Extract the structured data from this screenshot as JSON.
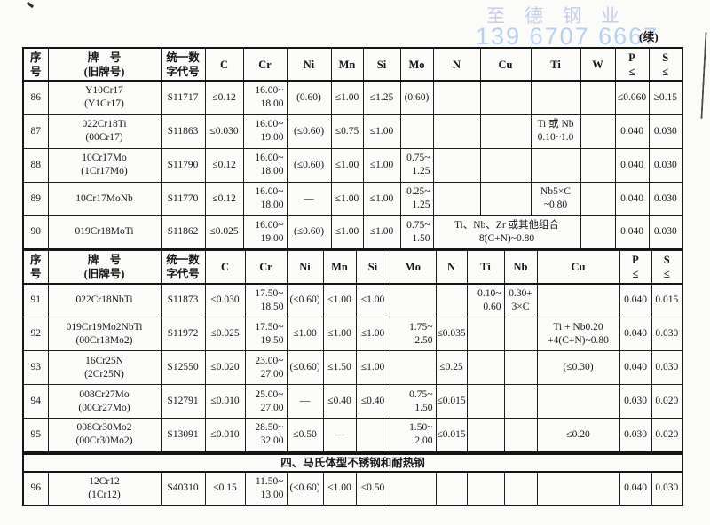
{
  "page": {
    "watermark_name": "至德钢业",
    "watermark_phone": "139 6707 6667",
    "continued": "(续)",
    "section_title": "四、马氏体型不锈钢和耐热钢"
  },
  "sections": [
    {
      "name": "ferritic-continued",
      "header": {
        "seq": "序号",
        "grade": [
          "牌　号",
          "(旧牌号)"
        ],
        "code": [
          "统一数",
          "字代号"
        ],
        "c": "C",
        "cr": "Cr",
        "ni": "Ni",
        "mn": "Mn",
        "si": "Si",
        "mo": "Mo",
        "n": "N",
        "cu": "Cu",
        "ti": "Ti",
        "w": "W",
        "p": [
          "P",
          "≤"
        ],
        "s": [
          "S",
          "≤"
        ]
      },
      "rows": [
        {
          "cells": [
            {
              "k": "seq",
              "v": "86"
            },
            {
              "k": "grade",
              "v": [
                "Y10Cr17",
                "(Y1Cr17)"
              ]
            },
            {
              "k": "code",
              "v": "S11717"
            },
            {
              "k": "c",
              "v": "≤0.12"
            },
            {
              "k": "cr",
              "v": [
                "16.00~",
                "18.00"
              ],
              "cls": "r"
            },
            {
              "k": "ni",
              "v": "(0.60)"
            },
            {
              "k": "mn",
              "v": "≤1.00"
            },
            {
              "k": "si",
              "v": "≤1.25"
            },
            {
              "k": "mo",
              "v": "(0.60)"
            },
            {
              "k": "n",
              "v": ""
            },
            {
              "k": "cu",
              "v": ""
            },
            {
              "k": "ti",
              "v": ""
            },
            {
              "k": "w",
              "v": ""
            },
            {
              "k": "p",
              "v": "≤0.060"
            },
            {
              "k": "s",
              "v": "≥0.15"
            }
          ]
        },
        {
          "cells": [
            {
              "k": "seq",
              "v": "87"
            },
            {
              "k": "grade",
              "v": [
                "022Cr18Ti",
                "(00Cr17)"
              ]
            },
            {
              "k": "code",
              "v": "S11863"
            },
            {
              "k": "c",
              "v": "≤0.030"
            },
            {
              "k": "cr",
              "v": [
                "16.00~",
                "19.00"
              ],
              "cls": "r"
            },
            {
              "k": "ni",
              "v": "(≤0.60)"
            },
            {
              "k": "mn",
              "v": "≤0.75"
            },
            {
              "k": "si",
              "v": "≤1.00"
            },
            {
              "k": "mo",
              "v": ""
            },
            {
              "k": "n",
              "v": ""
            },
            {
              "k": "cu",
              "v": ""
            },
            {
              "k": "ti",
              "v": [
                "Ti 或 Nb",
                "0.10~1.0"
              ]
            },
            {
              "k": "w",
              "v": ""
            },
            {
              "k": "p",
              "v": "0.040"
            },
            {
              "k": "s",
              "v": "0.030"
            }
          ]
        },
        {
          "cells": [
            {
              "k": "seq",
              "v": "88"
            },
            {
              "k": "grade",
              "v": [
                "10Cr17Mo",
                "(1Cr17Mo)"
              ]
            },
            {
              "k": "code",
              "v": "S11790"
            },
            {
              "k": "c",
              "v": "≤0.12"
            },
            {
              "k": "cr",
              "v": [
                "16.00~",
                "18.00"
              ],
              "cls": "r"
            },
            {
              "k": "ni",
              "v": "(≤0.60)"
            },
            {
              "k": "mn",
              "v": "≤1.00"
            },
            {
              "k": "si",
              "v": "≤1.00"
            },
            {
              "k": "mo",
              "v": [
                "0.75~",
                "1.25"
              ],
              "cls": "r"
            },
            {
              "k": "n",
              "v": ""
            },
            {
              "k": "cu",
              "v": ""
            },
            {
              "k": "ti",
              "v": ""
            },
            {
              "k": "w",
              "v": ""
            },
            {
              "k": "p",
              "v": "0.040"
            },
            {
              "k": "s",
              "v": "0.030"
            }
          ]
        },
        {
          "cells": [
            {
              "k": "seq",
              "v": "89"
            },
            {
              "k": "grade",
              "v": "10Cr17MoNb"
            },
            {
              "k": "code",
              "v": "S11770"
            },
            {
              "k": "c",
              "v": "≤0.12"
            },
            {
              "k": "cr",
              "v": [
                "16.00~",
                "18.00"
              ],
              "cls": "r"
            },
            {
              "k": "ni",
              "v": "—"
            },
            {
              "k": "mn",
              "v": "≤1.00"
            },
            {
              "k": "si",
              "v": "≤1.00"
            },
            {
              "k": "mo",
              "v": [
                "0.25~",
                "1.25"
              ],
              "cls": "r"
            },
            {
              "k": "n",
              "v": ""
            },
            {
              "k": "cu",
              "v": ""
            },
            {
              "k": "ti",
              "v": [
                "Nb5×C",
                "~0.80"
              ]
            },
            {
              "k": "w",
              "v": ""
            },
            {
              "k": "p",
              "v": "0.040"
            },
            {
              "k": "s",
              "v": "0.030"
            }
          ]
        },
        {
          "cells": [
            {
              "k": "seq",
              "v": "90"
            },
            {
              "k": "grade",
              "v": "019Cr18MoTi"
            },
            {
              "k": "code",
              "v": "S11862"
            },
            {
              "k": "c",
              "v": "≤0.025"
            },
            {
              "k": "cr",
              "v": [
                "16.00~",
                "19.00"
              ],
              "cls": "r"
            },
            {
              "k": "ni",
              "v": "(≤0.60)"
            },
            {
              "k": "mn",
              "v": "≤1.00"
            },
            {
              "k": "si",
              "v": "≤1.00"
            },
            {
              "k": "mo",
              "v": [
                "0.75~",
                "1.50"
              ],
              "cls": "r"
            },
            {
              "k": "n-cu-ti",
              "span": 3,
              "v": [
                "Ti、Nb、Zr 或其他组合",
                "8(C+N)~0.80"
              ]
            },
            {
              "k": "w",
              "v": ""
            },
            {
              "k": "p",
              "v": "0.040"
            },
            {
              "k": "s",
              "v": "0.030"
            }
          ]
        }
      ]
    },
    {
      "name": "ferritic-continued-2",
      "header": {
        "seq": "序号",
        "grade": [
          "牌　号",
          "(旧牌号)"
        ],
        "code": [
          "统一数",
          "字代号"
        ],
        "c": "C",
        "cr": "Cr",
        "ni": "Ni",
        "mn": "Mn",
        "si": "Si",
        "mo": "Mo",
        "n": "N",
        "ti": "Ti",
        "nb": "Nb",
        "cu": "Cu",
        "p": [
          "P",
          "≤"
        ],
        "s": [
          "S",
          "≤"
        ]
      },
      "rows": [
        {
          "cells": [
            {
              "k": "seq",
              "v": "91"
            },
            {
              "k": "grade",
              "v": "022Cr18NbTi"
            },
            {
              "k": "code",
              "v": "S11873"
            },
            {
              "k": "c",
              "v": "≤0.030"
            },
            {
              "k": "cr",
              "v": [
                "17.50~",
                "18.50"
              ],
              "cls": "r"
            },
            {
              "k": "ni",
              "v": "(≤0.60)"
            },
            {
              "k": "mn",
              "v": "≤1.00"
            },
            {
              "k": "si",
              "v": "≤1.00"
            },
            {
              "k": "mo",
              "v": ""
            },
            {
              "k": "n",
              "v": ""
            },
            {
              "k": "ti",
              "v": [
                "0.10~",
                "0.60"
              ],
              "cls": "r"
            },
            {
              "k": "nb",
              "v": [
                "0.30+",
                "3×C"
              ]
            },
            {
              "k": "cu",
              "v": ""
            },
            {
              "k": "p",
              "v": "0.040"
            },
            {
              "k": "s",
              "v": "0.015"
            }
          ]
        },
        {
          "cells": [
            {
              "k": "seq",
              "v": "92"
            },
            {
              "k": "grade",
              "v": [
                "019Cr19Mo2NbTi",
                "(00Cr18Mo2)"
              ]
            },
            {
              "k": "code",
              "v": "S11972"
            },
            {
              "k": "c",
              "v": "≤0.025"
            },
            {
              "k": "cr",
              "v": [
                "17.50~",
                "19.50"
              ],
              "cls": "r"
            },
            {
              "k": "ni",
              "v": "≤1.00"
            },
            {
              "k": "mn",
              "v": "≤1.00"
            },
            {
              "k": "si",
              "v": "≤1.00"
            },
            {
              "k": "mo",
              "v": [
                "1.75~",
                "2.50"
              ],
              "cls": "r"
            },
            {
              "k": "n",
              "v": "≤0.035"
            },
            {
              "k": "ti",
              "v": ""
            },
            {
              "k": "nb",
              "v": ""
            },
            {
              "k": "cu",
              "v": [
                "Ti + Nb0.20",
                "+4(C+N)~0.80"
              ]
            },
            {
              "k": "p",
              "v": "0.040"
            },
            {
              "k": "s",
              "v": "0.030"
            }
          ]
        },
        {
          "cells": [
            {
              "k": "seq",
              "v": "93"
            },
            {
              "k": "grade",
              "v": [
                "16Cr25N",
                "(2Cr25N)"
              ]
            },
            {
              "k": "code",
              "v": "S12550"
            },
            {
              "k": "c",
              "v": "≤0.020"
            },
            {
              "k": "cr",
              "v": [
                "23.00~",
                "27.00"
              ],
              "cls": "r"
            },
            {
              "k": "ni",
              "v": "(≤0.60)"
            },
            {
              "k": "mn",
              "v": "≤1.50"
            },
            {
              "k": "si",
              "v": "≤1.00"
            },
            {
              "k": "mo",
              "v": ""
            },
            {
              "k": "n",
              "v": "≤0.25"
            },
            {
              "k": "ti",
              "v": ""
            },
            {
              "k": "nb",
              "v": ""
            },
            {
              "k": "cu",
              "v": "(≤0.30)"
            },
            {
              "k": "p",
              "v": "0.040"
            },
            {
              "k": "s",
              "v": "0.030"
            }
          ]
        },
        {
          "cells": [
            {
              "k": "seq",
              "v": "94"
            },
            {
              "k": "grade",
              "v": [
                "008Cr27Mo",
                "(00Cr27Mo)"
              ]
            },
            {
              "k": "code",
              "v": "S12791"
            },
            {
              "k": "c",
              "v": "≤0.010"
            },
            {
              "k": "cr",
              "v": [
                "25.00~",
                "27.00"
              ],
              "cls": "r"
            },
            {
              "k": "ni",
              "v": "—"
            },
            {
              "k": "mn",
              "v": "≤0.40"
            },
            {
              "k": "si",
              "v": "≤0.40"
            },
            {
              "k": "mo",
              "v": [
                "0.75~",
                "1.50"
              ],
              "cls": "r"
            },
            {
              "k": "n",
              "v": "≤0.015"
            },
            {
              "k": "ti",
              "v": ""
            },
            {
              "k": "nb",
              "v": ""
            },
            {
              "k": "cu",
              "v": ""
            },
            {
              "k": "p",
              "v": "0.030"
            },
            {
              "k": "s",
              "v": "0.020"
            }
          ]
        },
        {
          "cells": [
            {
              "k": "seq",
              "v": "95"
            },
            {
              "k": "grade",
              "v": [
                "008Cr30Mo2",
                "(00Cr30Mo2)"
              ]
            },
            {
              "k": "code",
              "v": "S13091"
            },
            {
              "k": "c",
              "v": "≤0.010"
            },
            {
              "k": "cr",
              "v": [
                "28.50~",
                "32.00"
              ],
              "cls": "r"
            },
            {
              "k": "ni",
              "v": "≤0.50"
            },
            {
              "k": "mn",
              "v": "—"
            },
            {
              "k": "si",
              "v": ""
            },
            {
              "k": "mo",
              "v": [
                "1.50~",
                "2.00"
              ],
              "cls": "r"
            },
            {
              "k": "n",
              "v": "≤0.015"
            },
            {
              "k": "ti",
              "v": ""
            },
            {
              "k": "nb",
              "v": ""
            },
            {
              "k": "cu",
              "v": "≤0.20"
            },
            {
              "k": "p",
              "v": "0.030"
            },
            {
              "k": "s",
              "v": "0.020"
            }
          ]
        }
      ]
    },
    {
      "name": "martensitic",
      "rows": [
        {
          "cells": [
            {
              "k": "seq",
              "v": "96"
            },
            {
              "k": "grade",
              "v": [
                "12Cr12",
                "(1Cr12)"
              ]
            },
            {
              "k": "code",
              "v": "S40310"
            },
            {
              "k": "c",
              "v": "≤0.15"
            },
            {
              "k": "cr",
              "v": [
                "11.50~",
                "13.00"
              ],
              "cls": "r"
            },
            {
              "k": "ni",
              "v": "(≤0.60)"
            },
            {
              "k": "mn",
              "v": "≤1.00"
            },
            {
              "k": "si",
              "v": "≤0.50"
            },
            {
              "k": "mo",
              "v": ""
            },
            {
              "k": "n",
              "v": ""
            },
            {
              "k": "ti",
              "v": ""
            },
            {
              "k": "nb",
              "v": ""
            },
            {
              "k": "cu",
              "v": ""
            },
            {
              "k": "p",
              "v": "0.040"
            },
            {
              "k": "s",
              "v": "0.030"
            }
          ]
        }
      ]
    }
  ]
}
